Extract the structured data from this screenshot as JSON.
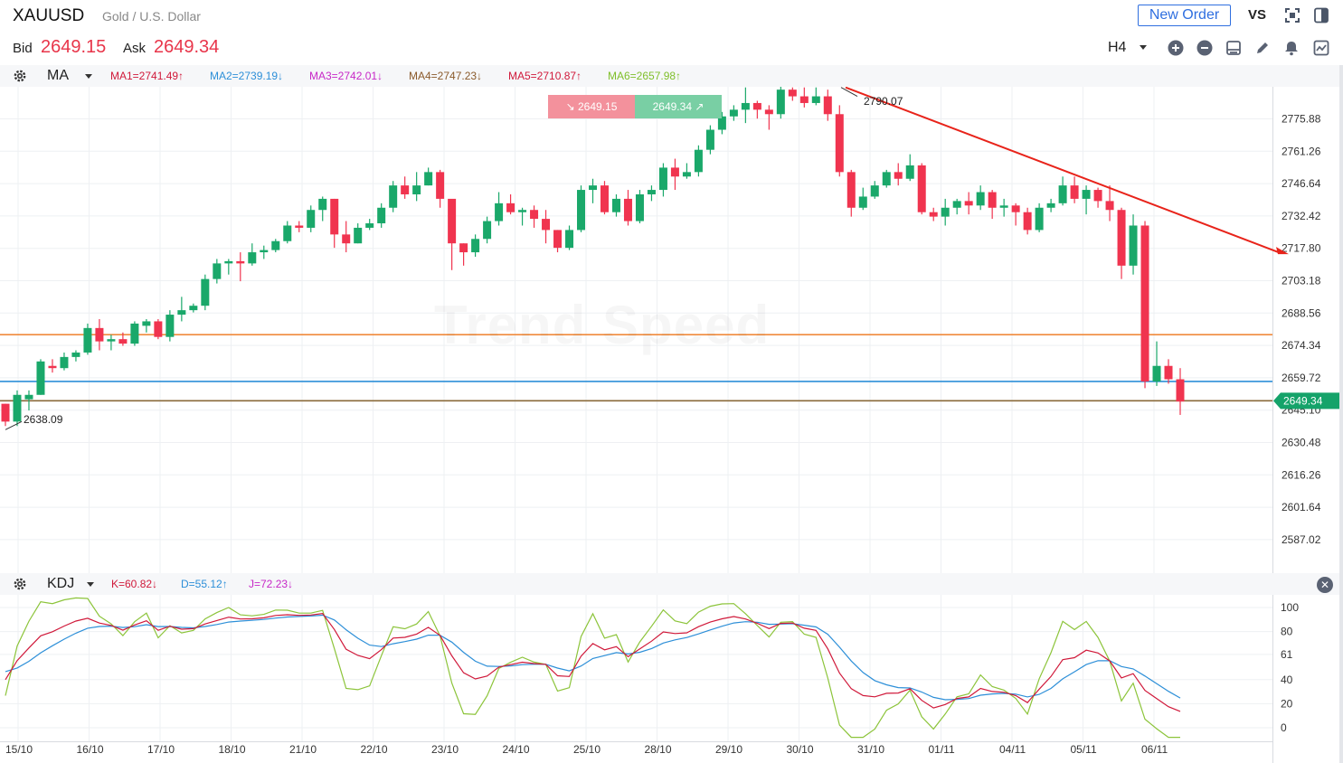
{
  "header": {
    "symbol": "XAUUSD",
    "description": "Gold / U.S. Dollar",
    "new_order_label": "New Order",
    "vs_label": "VS",
    "bid_label": "Bid",
    "bid_value": "2649.15",
    "ask_label": "Ask",
    "ask_value": "2649.34",
    "timeframe": "H4"
  },
  "ma_bar": {
    "name": "MA",
    "items": [
      {
        "label": "MA1=2741.49↑",
        "color": "#d0193a"
      },
      {
        "label": "MA2=2739.19↓",
        "color": "#2d8fd8"
      },
      {
        "label": "MA3=2742.01↓",
        "color": "#c728c7"
      },
      {
        "label": "MA4=2747.23↓",
        "color": "#8a5a2b"
      },
      {
        "label": "MA5=2710.87↑",
        "color": "#d0193a"
      },
      {
        "label": "MA6=2657.98↑",
        "color": "#7fbf2a"
      }
    ]
  },
  "kdj_bar": {
    "name": "KDJ",
    "items": [
      {
        "label": "K=60.82↓",
        "color": "#d0193a"
      },
      {
        "label": "D=55.12↑",
        "color": "#2d8fd8"
      },
      {
        "label": "J=72.23↓",
        "color": "#c728c7"
      }
    ]
  },
  "trade_badges": {
    "sell": "2649.15",
    "buy": "2649.34"
  },
  "watermark": "Trend Speed",
  "annotations": {
    "high": "2790.07",
    "low": "2638.09"
  },
  "price_tag": "2649.34",
  "chart_data": {
    "type": "candlestick",
    "price_axis": {
      "ticks": [
        "2775.88",
        "2761.26",
        "2746.64",
        "2732.42",
        "2717.80",
        "2703.18",
        "2688.56",
        "2674.34",
        "2659.72",
        "2645.10",
        "2630.48",
        "2616.26",
        "2601.64",
        "2587.02"
      ],
      "range": [
        2580,
        2795
      ]
    },
    "time_axis": [
      "15/10",
      "16/10",
      "17/10",
      "18/10",
      "21/10",
      "22/10",
      "23/10",
      "24/10",
      "25/10",
      "28/10",
      "29/10",
      "30/10",
      "31/10",
      "01/11",
      "04/11",
      "05/11",
      "06/11"
    ],
    "horizontal_lines": [
      {
        "price": 2679,
        "color": "#f08a3c"
      },
      {
        "price": 2658,
        "color": "#2d8fd8"
      },
      {
        "price": 2649.34,
        "color": "#8a6a3a"
      }
    ],
    "trendline": {
      "from_price": 2790,
      "to_price": 2718,
      "color": "#e8231a"
    },
    "candles": [
      [
        2648,
        2648,
        2638,
        2640
      ],
      [
        2640,
        2654,
        2638,
        2652
      ],
      [
        2650,
        2654,
        2645,
        2652
      ],
      [
        2652,
        2668,
        2652,
        2667
      ],
      [
        2665,
        2668,
        2662,
        2664
      ],
      [
        2664,
        2671,
        2663,
        2669
      ],
      [
        2669,
        2672,
        2667,
        2671
      ],
      [
        2671,
        2684,
        2670,
        2682
      ],
      [
        2682,
        2686,
        2672,
        2676
      ],
      [
        2676,
        2679,
        2672,
        2677
      ],
      [
        2677,
        2680,
        2674,
        2675
      ],
      [
        2675,
        2685,
        2674,
        2684
      ],
      [
        2683,
        2686,
        2680,
        2685
      ],
      [
        2685,
        2686,
        2677,
        2678
      ],
      [
        2678,
        2690,
        2676,
        2688
      ],
      [
        2688,
        2696,
        2685,
        2690
      ],
      [
        2690,
        2693,
        2689,
        2692
      ],
      [
        2692,
        2706,
        2690,
        2704
      ],
      [
        2704,
        2713,
        2702,
        2711
      ],
      [
        2711,
        2713,
        2706,
        2712
      ],
      [
        2712,
        2716,
        2703,
        2711
      ],
      [
        2711,
        2720,
        2710,
        2716
      ],
      [
        2716,
        2719,
        2713,
        2717
      ],
      [
        2717,
        2722,
        2716,
        2721
      ],
      [
        2721,
        2730,
        2720,
        2728
      ],
      [
        2728,
        2730,
        2725,
        2727
      ],
      [
        2727,
        2737,
        2725,
        2735
      ],
      [
        2735,
        2741,
        2730,
        2740
      ],
      [
        2740,
        2740,
        2718,
        2724
      ],
      [
        2724,
        2730,
        2716,
        2720
      ],
      [
        2720,
        2729,
        2720,
        2727
      ],
      [
        2727,
        2731,
        2726,
        2729
      ],
      [
        2729,
        2738,
        2727,
        2736
      ],
      [
        2736,
        2748,
        2734,
        2746
      ],
      [
        2746,
        2750,
        2740,
        2742
      ],
      [
        2742,
        2752,
        2739,
        2746
      ],
      [
        2746,
        2754,
        2746,
        2752
      ],
      [
        2752,
        2753,
        2736,
        2740
      ],
      [
        2740,
        2739,
        2708,
        2720
      ],
      [
        2720,
        2720,
        2710,
        2716
      ],
      [
        2716,
        2724,
        2714,
        2722
      ],
      [
        2722,
        2732,
        2720,
        2730
      ],
      [
        2730,
        2743,
        2728,
        2738
      ],
      [
        2738,
        2742,
        2733,
        2734
      ],
      [
        2734,
        2736,
        2728,
        2735
      ],
      [
        2735,
        2737,
        2727,
        2731
      ],
      [
        2731,
        2735,
        2720,
        2726
      ],
      [
        2726,
        2726,
        2716,
        2718
      ],
      [
        2718,
        2728,
        2717,
        2726
      ],
      [
        2726,
        2746,
        2725,
        2744
      ],
      [
        2744,
        2749,
        2738,
        2746
      ],
      [
        2746,
        2748,
        2733,
        2734
      ],
      [
        2734,
        2742,
        2732,
        2740
      ],
      [
        2740,
        2744,
        2728,
        2730
      ],
      [
        2730,
        2744,
        2729,
        2742
      ],
      [
        2742,
        2746,
        2739,
        2744
      ],
      [
        2744,
        2756,
        2741,
        2754
      ],
      [
        2754,
        2758,
        2744,
        2750
      ],
      [
        2750,
        2756,
        2749,
        2752
      ],
      [
        2752,
        2764,
        2750,
        2762
      ],
      [
        2762,
        2773,
        2760,
        2771
      ],
      [
        2771,
        2779,
        2769,
        2777
      ],
      [
        2777,
        2782,
        2775,
        2780
      ],
      [
        2780,
        2790,
        2774,
        2783
      ],
      [
        2783,
        2784,
        2776,
        2780
      ],
      [
        2780,
        2782,
        2771,
        2778
      ],
      [
        2778,
        2791,
        2776,
        2789
      ],
      [
        2789,
        2790,
        2784,
        2786
      ],
      [
        2786,
        2790,
        2781,
        2783
      ],
      [
        2783,
        2790,
        2782,
        2786
      ],
      [
        2786,
        2789,
        2775,
        2778
      ],
      [
        2778,
        2782,
        2750,
        2752
      ],
      [
        2752,
        2753,
        2732,
        2736
      ],
      [
        2736,
        2745,
        2735,
        2741
      ],
      [
        2741,
        2748,
        2740,
        2746
      ],
      [
        2746,
        2753,
        2745,
        2752
      ],
      [
        2752,
        2756,
        2746,
        2749
      ],
      [
        2749,
        2760,
        2748,
        2755
      ],
      [
        2755,
        2756,
        2733,
        2734
      ],
      [
        2734,
        2736,
        2730,
        2732
      ],
      [
        2732,
        2740,
        2728,
        2736
      ],
      [
        2736,
        2740,
        2733,
        2739
      ],
      [
        2739,
        2743,
        2733,
        2737
      ],
      [
        2737,
        2746,
        2735,
        2743
      ],
      [
        2743,
        2744,
        2731,
        2736
      ],
      [
        2736,
        2740,
        2732,
        2737
      ],
      [
        2737,
        2738,
        2728,
        2734
      ],
      [
        2734,
        2736,
        2724,
        2726
      ],
      [
        2726,
        2738,
        2725,
        2736
      ],
      [
        2736,
        2740,
        2734,
        2738
      ],
      [
        2738,
        2750,
        2737,
        2746
      ],
      [
        2746,
        2750,
        2738,
        2740
      ],
      [
        2740,
        2746,
        2733,
        2744
      ],
      [
        2744,
        2745,
        2736,
        2739
      ],
      [
        2739,
        2746,
        2730,
        2735
      ],
      [
        2735,
        2736,
        2704,
        2710
      ],
      [
        2710,
        2733,
        2706,
        2728
      ],
      [
        2728,
        2730,
        2655,
        2658
      ],
      [
        2658,
        2676,
        2656,
        2665
      ],
      [
        2665,
        2668,
        2657,
        2659
      ],
      [
        2659,
        2664,
        2643,
        2649
      ]
    ]
  },
  "kdj_axis": [
    "100",
    "80",
    "61",
    "40",
    "20",
    "0"
  ]
}
